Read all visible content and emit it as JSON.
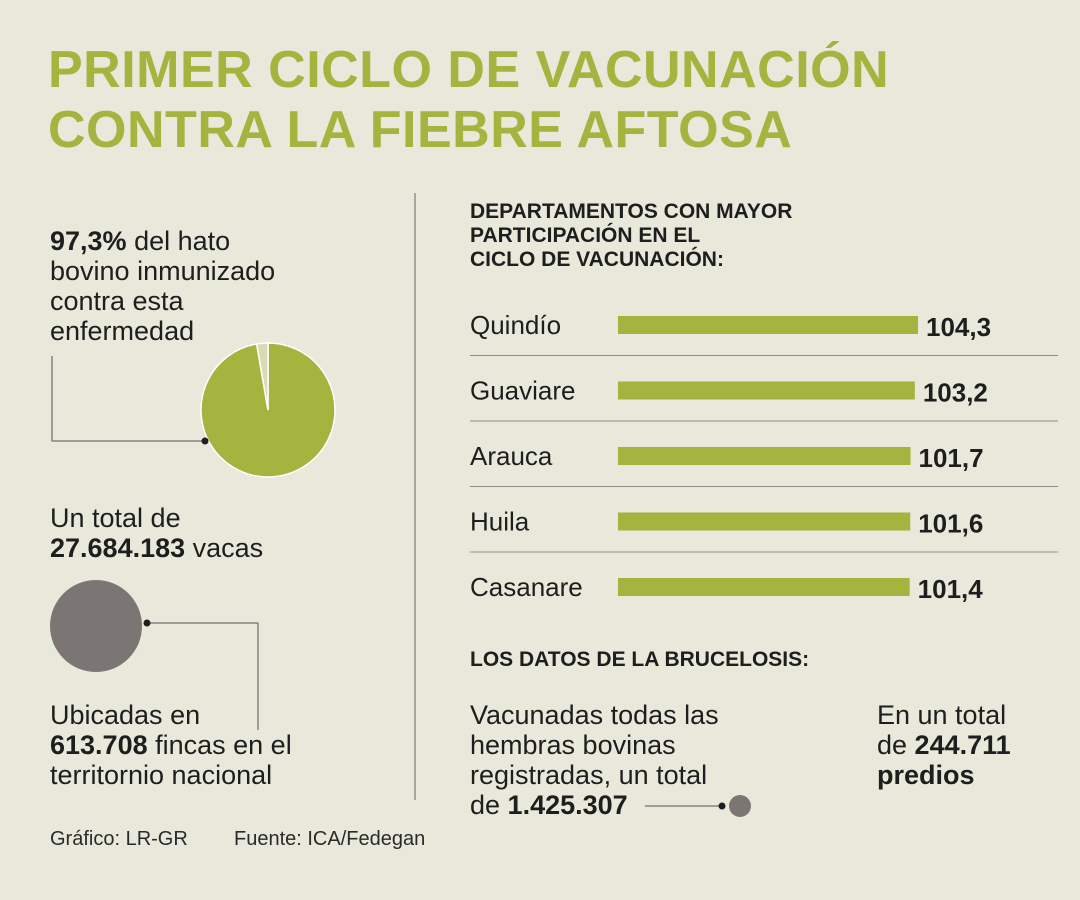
{
  "header": {
    "title_line1": "PRIMER CICLO DE VACUNACIÓN",
    "title_line2": "CONTRA LA FIEBRE AFTOSA"
  },
  "left": {
    "immunized_pct": "97,3%",
    "immunized_line1_rest": " del hato",
    "immunized_line2": "bovino inmunizado",
    "immunized_line3": "contra esta",
    "immunized_line4": "enfermedad",
    "total_line1": "Un total de",
    "total_cows": "27.684.183",
    "total_cows_suffix": " vacas",
    "farms_line1": "Ubicadas en",
    "farms_count": "613.708",
    "farms_line2_rest": " fincas en el",
    "farms_line3": "territornio nacional"
  },
  "bars_section": {
    "heading_line1": "DEPARTAMENTOS CON MAYOR",
    "heading_line2": "PARTICIPACIÓN EN EL",
    "heading_line3": "CICLO DE VACUNACIÓN:"
  },
  "brucelosis": {
    "heading": "LOS DATOS DE LA BRUCELOSIS:",
    "left_line1": "Vacunadas todas las",
    "left_line2": "hembras bovinas",
    "left_line3": "registradas, un total",
    "left_line4_prefix": "de ",
    "left_value": "1.425.307",
    "right_line1": "En un total",
    "right_line2_prefix": "de ",
    "right_value": "244.711",
    "right_line3": "predios"
  },
  "footer": {
    "credit": "Gráfico: LR-GR",
    "source": "Fuente: ICA/Fedegan"
  },
  "colors": {
    "accent_green": "#a4b43e",
    "gray_circle": "#7b7673",
    "background": "#e8e8db"
  },
  "chart_data": [
    {
      "type": "pie",
      "slices": [
        {
          "label": "Inmunizado",
          "value": 97.3
        },
        {
          "label": "",
          "value": 2.7
        }
      ]
    },
    {
      "type": "bar",
      "orientation": "horizontal",
      "categories": [
        "Quindío",
        "Guaviare",
        "Arauca",
        "Huila",
        "Casanare"
      ],
      "values": [
        104.3,
        103.2,
        101.7,
        101.6,
        101.4
      ],
      "value_labels": [
        "104,3",
        "103,2",
        "101,7",
        "101,6",
        "101,4"
      ]
    }
  ]
}
